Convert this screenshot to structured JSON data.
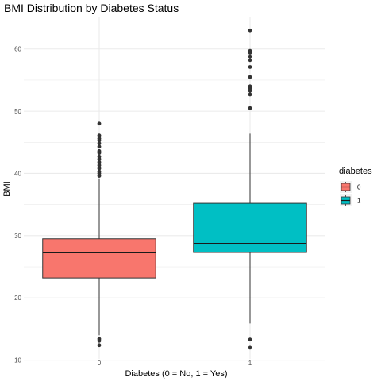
{
  "chart_data": {
    "type": "box",
    "title": "BMI Distribution by Diabetes Status",
    "xlabel": "Diabetes (0 = No, 1 = Yes)",
    "ylabel": "BMI",
    "categories": [
      "0",
      "1"
    ],
    "ylim": [
      10.2,
      65.2
    ],
    "yticks": [
      10,
      20,
      30,
      40,
      50,
      60
    ],
    "grid": true,
    "legend": {
      "title": "diabetes",
      "placement": "right",
      "entries": [
        {
          "label": "0",
          "color": "#F8766D"
        },
        {
          "label": "1",
          "color": "#00BFC4"
        }
      ]
    },
    "series": [
      {
        "category": "0",
        "color": "#F8766D",
        "whisker_low": 14.0,
        "q1": 23.2,
        "median": 27.3,
        "q3": 29.5,
        "whisker_high": 39.2,
        "outliers": [
          12.4,
          13.1,
          13.4,
          39.6,
          40.0,
          40.3,
          40.8,
          41.3,
          41.8,
          42.3,
          42.7,
          43.3,
          43.6,
          44.3,
          44.8,
          45.3,
          45.6,
          46.1,
          48.0
        ]
      },
      {
        "category": "1",
        "color": "#00BFC4",
        "whisker_low": 15.9,
        "q1": 27.3,
        "median": 28.7,
        "q3": 35.2,
        "whisker_high": 46.4,
        "outliers": [
          12.0,
          13.3,
          50.5,
          52.7,
          53.3,
          53.7,
          54.0,
          55.5,
          57.1,
          58.2,
          58.8,
          59.4,
          59.7,
          63.0
        ]
      }
    ]
  },
  "colors": {
    "grid": "#ebebeb",
    "whisker": "#333333",
    "point": "#333333",
    "median": "#1a1a1a"
  }
}
